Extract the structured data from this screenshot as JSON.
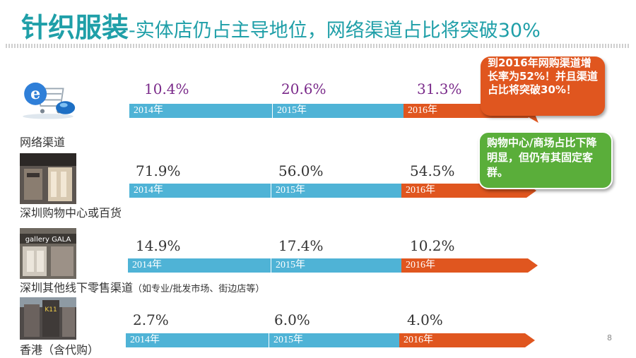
{
  "title": {
    "main": "针织服装",
    "sub": "-实体店仍占主导地位，网络渠道占比将突破30%"
  },
  "rows": [
    {
      "label": "网络渠道",
      "note": "",
      "icon": "ecommerce-icon",
      "values": [
        "10.4%",
        "20.6%",
        "31.3%"
      ],
      "years": [
        "2014年",
        "2015年",
        "2016年"
      ]
    },
    {
      "label": "深圳购物中心或百货",
      "note": "",
      "icon": "mall-photo",
      "values": [
        "71.9%",
        "56.0%",
        "54.5%"
      ],
      "years": [
        "2014年",
        "2015年",
        "2016年"
      ]
    },
    {
      "label": "深圳其他线下零售渠道",
      "note": "（如专业/批发市场、街边店等）",
      "icon": "storefront-photo",
      "values": [
        "14.9%",
        "17.4%",
        "10.2%"
      ],
      "years": [
        "2014年",
        "2015年",
        "2016年"
      ]
    },
    {
      "label": "香港（含代购）",
      "note": "",
      "icon": "hongkong-street-photo",
      "values": [
        "2.7%",
        "6.0%",
        "4.0%"
      ],
      "years": [
        "2014年",
        "2015年",
        "2016年"
      ]
    }
  ],
  "callouts": {
    "online": "到2016年网购渠道增长率为52%！并且渠道占比将突破30%！",
    "mall": "购物中心/商场占比下降明显，但仍有其固定客群。"
  },
  "page_number": "8",
  "colors": {
    "title": "#1f9fa8",
    "bar_blue": "#4fb3d6",
    "bar_orange": "#e0561f",
    "callout_green": "#5aae3a"
  }
}
